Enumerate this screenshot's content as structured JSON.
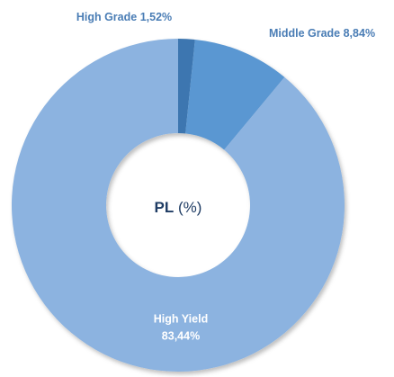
{
  "chart_data": {
    "type": "donut",
    "categories": [
      "High Grade",
      "Middle Grade",
      "High Yield"
    ],
    "values": [
      1.52,
      8.84,
      83.44
    ],
    "value_labels": [
      "1,52%",
      "8,84%",
      "83,44%"
    ],
    "colors": [
      "#3c76b0",
      "#5a97d2",
      "#8cb3e0"
    ],
    "center_title": "PL",
    "center_unit": "(%)"
  }
}
